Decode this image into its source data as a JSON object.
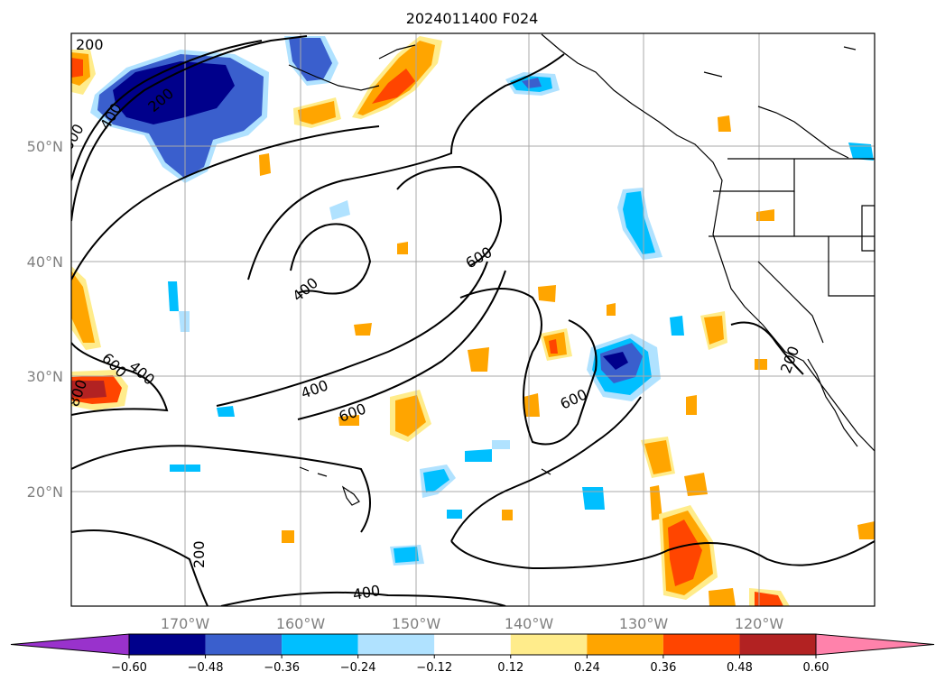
{
  "title": "2024011400 F024",
  "lon_labels": [
    "170°W",
    "160°W",
    "150°W",
    "140°W",
    "130°W",
    "120°W"
  ],
  "lat_labels": [
    "50°N",
    "40°N",
    "30°N",
    "20°N"
  ],
  "colorbar": {
    "ticks": [
      "−0.60",
      "−0.48",
      "−0.36",
      "−0.24",
      "−0.12",
      "0.12",
      "0.24",
      "0.36",
      "0.48",
      "0.60"
    ],
    "colors": [
      "#9932cc",
      "#00008b",
      "#3a5fcd",
      "#00bfff",
      "#b0e2ff",
      "#ffffff",
      "#ffec8b",
      "#ffa500",
      "#ff4500",
      "#b22222",
      "#ff82ab"
    ]
  },
  "contour_labels": [
    "200",
    "200",
    "600",
    "400",
    "400",
    "600",
    "600",
    "400",
    "800",
    "400",
    "600",
    "600",
    "200",
    "200",
    "400"
  ]
}
